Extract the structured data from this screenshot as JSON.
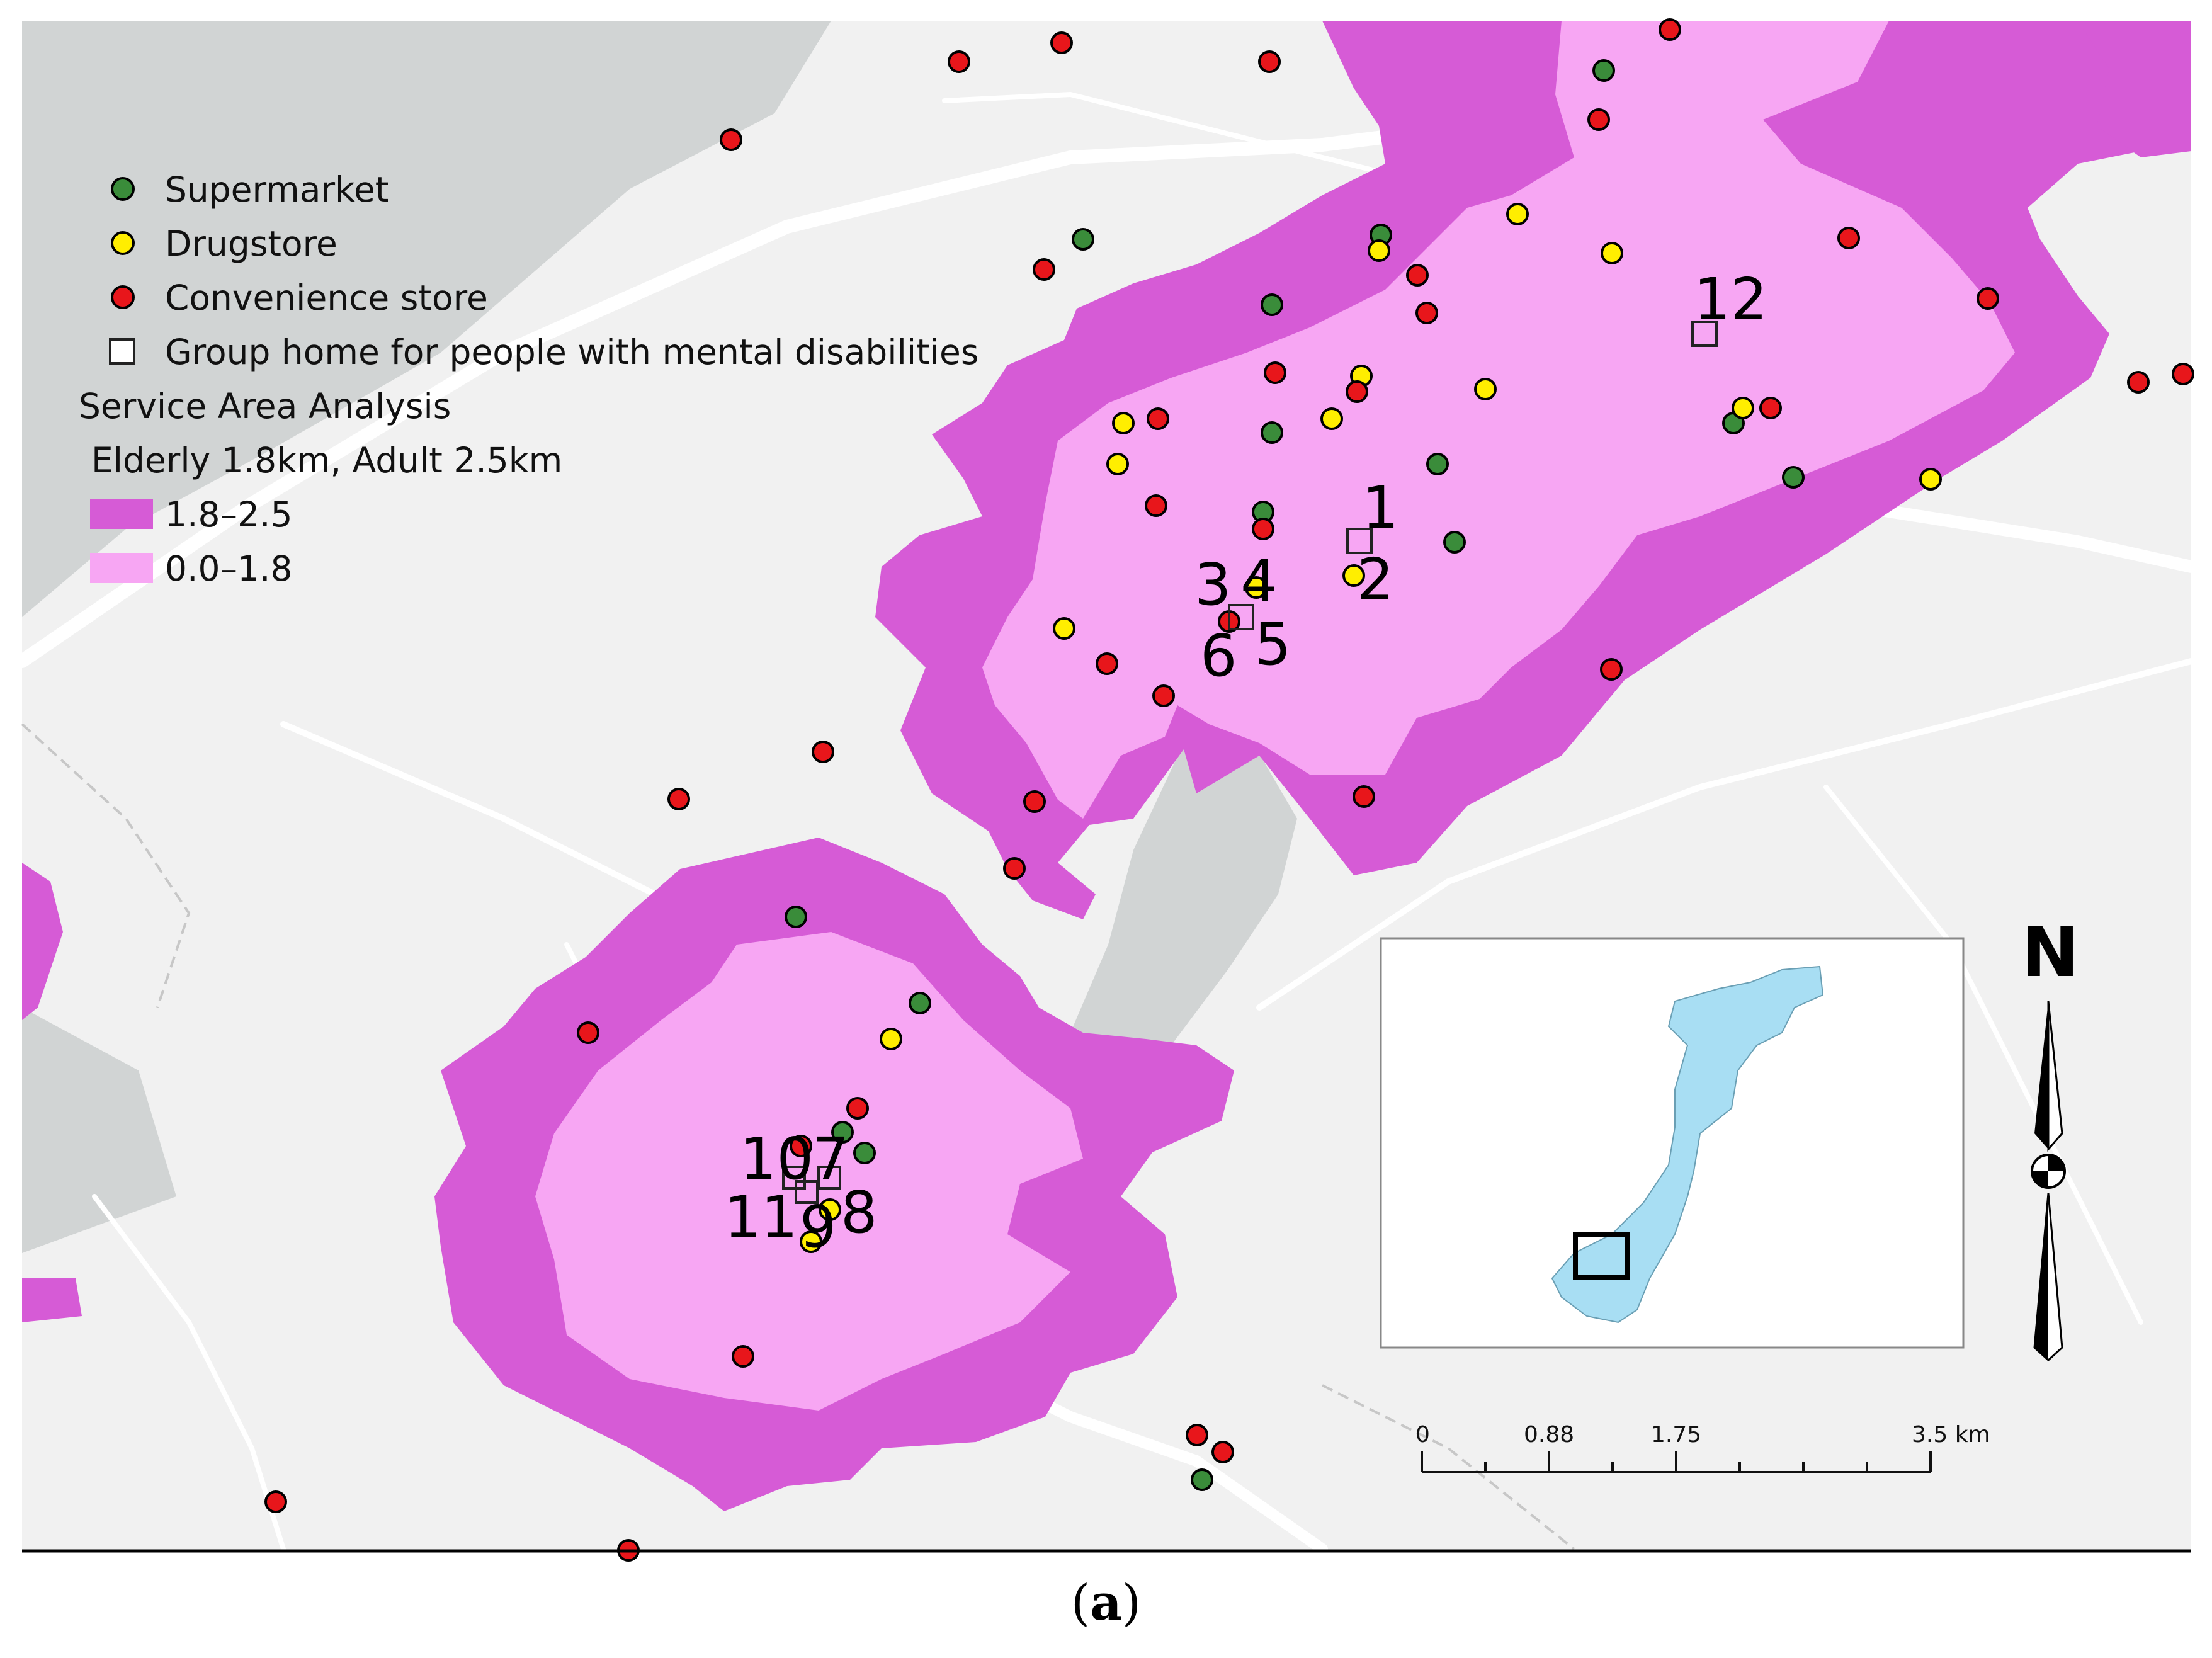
{
  "legend": {
    "items": [
      {
        "label": "Supermarket",
        "symbol": "circle",
        "color": "#3a8c3a"
      },
      {
        "label": "Drugstore",
        "symbol": "circle",
        "color": "#ffee00"
      },
      {
        "label": "Convenience store",
        "symbol": "circle",
        "color": "#e8161b"
      },
      {
        "label": "Group home for people with mental disabilities",
        "symbol": "square",
        "color": "#ffffff"
      }
    ],
    "service_title": "Service Area Analysis",
    "service_subtitle": "Elderly 1.8km, Adult 2.5km",
    "service_bands": [
      {
        "label": "1.8–2.5",
        "color": "#d65bd6"
      },
      {
        "label": "0.0–1.8",
        "color": "#f7a6f3"
      }
    ]
  },
  "group_home_labels": [
    "1",
    "2",
    "3",
    "4",
    "5",
    "6",
    "7",
    "8",
    "9",
    "10",
    "11",
    "12"
  ],
  "scale_bar": {
    "labels": [
      "0",
      "0.88",
      "1.75",
      "3.5 km"
    ]
  },
  "north_arrow": {
    "label": "N"
  },
  "caption": {
    "open": "(",
    "letter": "a",
    "close": ")"
  },
  "colors": {
    "background_map": "#f1f1f1",
    "water": "#d1d4d4",
    "roads": "#ffffff",
    "service_outer": "#d65bd6",
    "service_inner": "#f7a6f3",
    "inset_land": "#a8def3"
  }
}
